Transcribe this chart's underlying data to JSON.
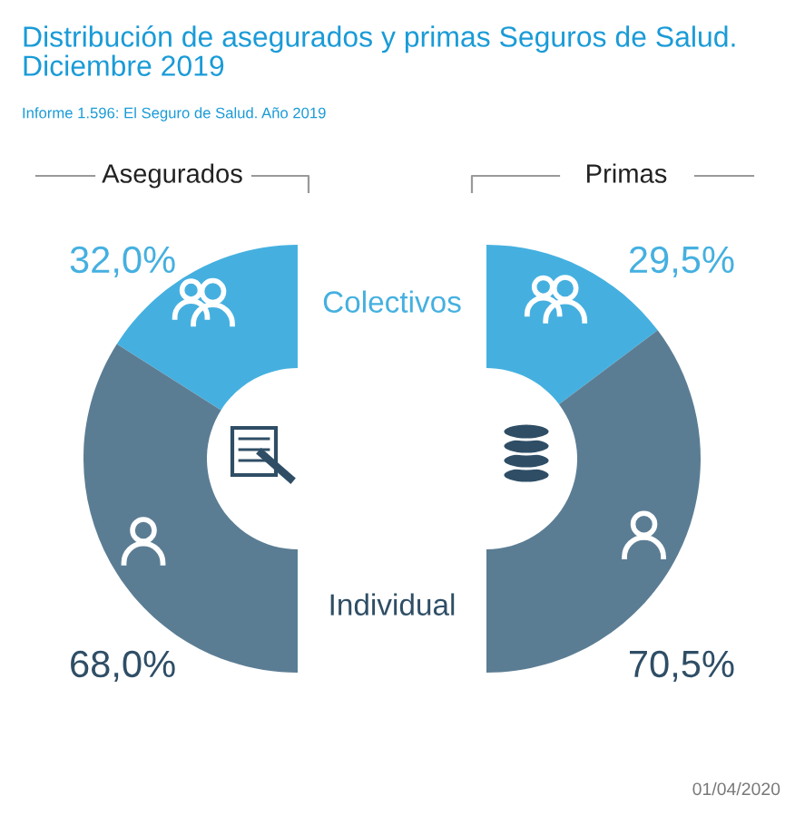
{
  "chart_data": [
    {
      "type": "other",
      "title": "Distribución de asegurados y primas Seguros de Salud. Diciembre 2019",
      "subtitle": "Informe 1.596: El Seguro de Salud. Año 2019",
      "annotations": [
        "01/04/2020"
      ]
    },
    {
      "type": "donut",
      "title": "Asegurados",
      "categories": [
        null,
        null
      ],
      "annotations": [
        "Colectivos",
        "Individual"
      ],
      "values": [
        32.0,
        68.0
      ],
      "colors": [
        "#45b0e0",
        "#5b7d94"
      ],
      "value_labels": [
        "32,0%",
        "68,0%"
      ]
    },
    {
      "type": "donut",
      "title": "Primas",
      "categories": [
        null,
        null
      ],
      "values": [
        29.5,
        70.5
      ],
      "colors": [
        "#45b0e0",
        "#5b7d94"
      ],
      "value_labels": [
        "29,5%",
        "70,5%"
      ]
    }
  ]
}
